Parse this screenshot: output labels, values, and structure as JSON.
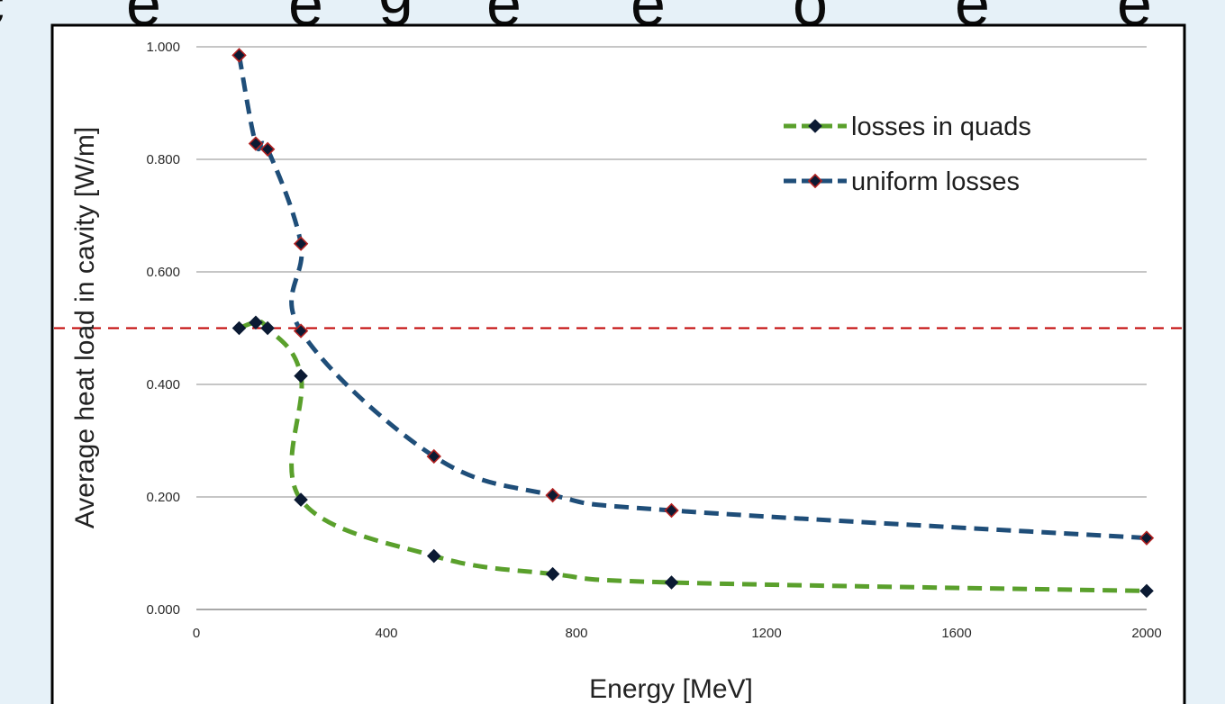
{
  "chart_data": {
    "type": "line",
    "xlabel": "Energy [MeV]",
    "ylabel": "Average heat load in cavity [W/m]",
    "xlim": [
      0,
      2000
    ],
    "ylim": [
      0,
      1
    ],
    "x_ticks": [
      "0",
      "400",
      "800",
      "1200",
      "1600",
      "2000"
    ],
    "y_ticks": [
      "0.000",
      "0.200",
      "0.400",
      "0.600",
      "0.800",
      "1.000"
    ],
    "grid": "horizontal",
    "legend_position": "top-right",
    "reference_line": {
      "y": 0.5,
      "color": "#c00000",
      "style": "dashed"
    },
    "series": [
      {
        "name": "losses in quads",
        "color": "#5aa02c",
        "marker_color": "#0b1a33",
        "points": [
          {
            "x": 90,
            "y": 0.5
          },
          {
            "x": 125,
            "y": 0.51
          },
          {
            "x": 150,
            "y": 0.5
          },
          {
            "x": 220,
            "y": 0.415
          },
          {
            "x": 220,
            "y": 0.195
          },
          {
            "x": 500,
            "y": 0.095
          },
          {
            "x": 750,
            "y": 0.063
          },
          {
            "x": 1000,
            "y": 0.048
          },
          {
            "x": 2000,
            "y": 0.033
          }
        ]
      },
      {
        "name": "uniform losses",
        "color": "#1f4e79",
        "marker_color": "#0b1a33",
        "marker_edge": "#b22222",
        "points": [
          {
            "x": 90,
            "y": 0.985
          },
          {
            "x": 125,
            "y": 0.828
          },
          {
            "x": 150,
            "y": 0.818
          },
          {
            "x": 220,
            "y": 0.65
          },
          {
            "x": 220,
            "y": 0.495
          },
          {
            "x": 500,
            "y": 0.272
          },
          {
            "x": 750,
            "y": 0.203
          },
          {
            "x": 1000,
            "y": 0.176
          },
          {
            "x": 2000,
            "y": 0.127
          }
        ]
      }
    ]
  },
  "colors": {
    "page_background": "#e6f1f8",
    "chart_background": "#ffffff",
    "frame": "#000000",
    "gridline": "#8c8c8c"
  }
}
